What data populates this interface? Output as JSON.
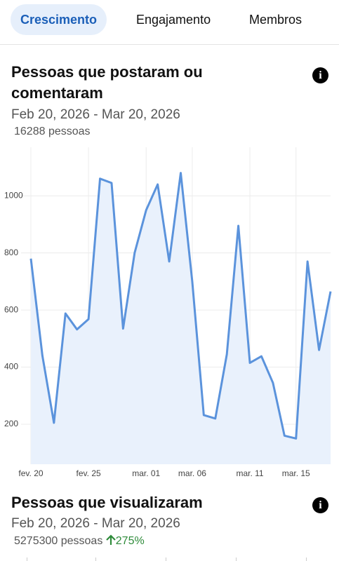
{
  "tabs": [
    "Crescimento",
    "Engajamento",
    "Membros"
  ],
  "section1": {
    "title": "Pessoas que postaram ou comentaram",
    "date_range": "Feb 20, 2026 - Mar 20, 2026",
    "total": "16288 pessoas"
  },
  "chart_data": {
    "type": "line",
    "categories": [
      "fev. 20",
      null,
      null,
      null,
      null,
      "fev. 25",
      null,
      null,
      null,
      null,
      "mar. 01",
      null,
      null,
      null,
      "mar. 06",
      null,
      null,
      null,
      null,
      "mar. 11",
      null,
      null,
      null,
      "mar. 15",
      null,
      null,
      null
    ],
    "series": [
      {
        "color": "#5b93dc",
        "values": [
          780,
          440,
          205,
          588,
          532,
          568,
          1060,
          1045,
          535,
          800,
          950,
          1040,
          770,
          1080,
          700,
          232,
          220,
          445,
          895,
          415,
          438,
          345,
          160,
          150,
          770,
          460,
          665
        ]
      }
    ],
    "ylim": [
      60,
      1170
    ],
    "yticks": [
      200,
      400,
      600,
      800,
      1000
    ],
    "grid": true,
    "area_color": "#e9f1fc"
  },
  "section2": {
    "title": "Pessoas que visualizaram",
    "date_range": "Feb 20, 2026 - Mar 20, 2026",
    "total": "5275300 pessoas",
    "change": "275%"
  }
}
